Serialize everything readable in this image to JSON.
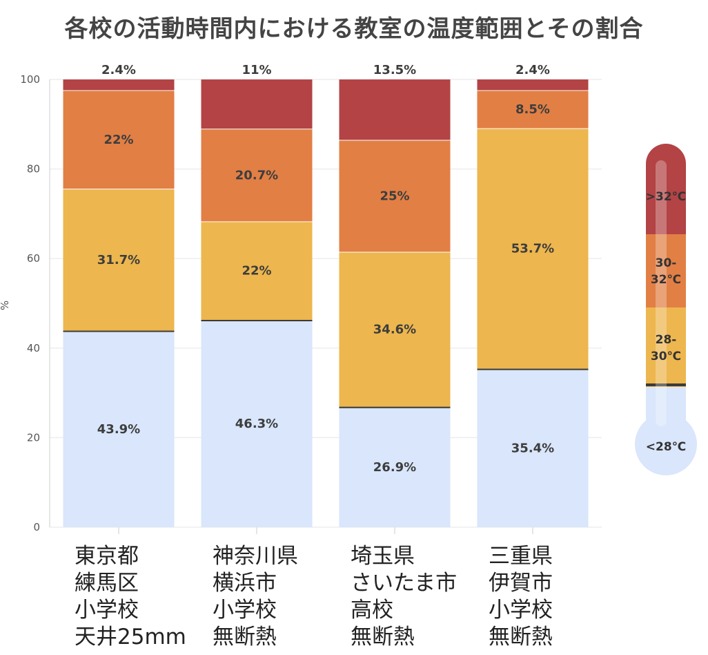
{
  "chart_data": {
    "type": "bar",
    "stacked": true,
    "title": "各校の活動時間内における教室の温度範囲とその割合",
    "xlabel": "",
    "ylabel": "%",
    "ylim": [
      0,
      100
    ],
    "yticks": [
      0,
      20,
      40,
      60,
      80,
      100
    ],
    "categories": [
      {
        "lines": [
          "東京都",
          "練馬区",
          "小学校",
          "天井25mm"
        ]
      },
      {
        "lines": [
          "神奈川県",
          "横浜市",
          "小学校",
          "無断熱"
        ]
      },
      {
        "lines": [
          "埼玉県",
          "さいたま市",
          "高校",
          "無断熱"
        ]
      },
      {
        "lines": [
          "三重県",
          "伊賀市",
          "小学校",
          "無断熱"
        ]
      }
    ],
    "series": [
      {
        "name": "<28℃",
        "color": "#d9e6fb",
        "values": [
          43.9,
          46.3,
          26.9,
          35.4
        ],
        "labels": [
          "43.9%",
          "46.3%",
          "26.9%",
          "35.4%"
        ]
      },
      {
        "name": "28-30℃",
        "color": "#edb64e",
        "values": [
          31.7,
          22.0,
          34.6,
          53.7
        ],
        "labels": [
          "31.7%",
          "22%",
          "34.6%",
          "53.7%"
        ]
      },
      {
        "name": "30-32℃",
        "color": "#e27f45",
        "values": [
          22.0,
          20.7,
          25.0,
          8.5
        ],
        "labels": [
          "22%",
          "20.7%",
          "25%",
          "8.5%"
        ]
      },
      {
        "name": ">32℃",
        "color": "#b34345",
        "values": [
          2.4,
          11.0,
          13.5,
          2.4
        ],
        "labels": [
          "2.4%",
          "11%",
          "13.5%",
          "2.4%"
        ]
      }
    ],
    "legend": {
      "placement": "right",
      "style": "thermometer",
      "entries": [
        {
          "lines": [
            ">32℃"
          ],
          "color": "#b34345"
        },
        {
          "lines": [
            "30-",
            "32℃"
          ],
          "color": "#e27f45"
        },
        {
          "lines": [
            "28-",
            "30℃"
          ],
          "color": "#edb64e"
        },
        {
          "lines": [
            "<28℃"
          ],
          "color": "#d9e6fb"
        }
      ]
    }
  }
}
